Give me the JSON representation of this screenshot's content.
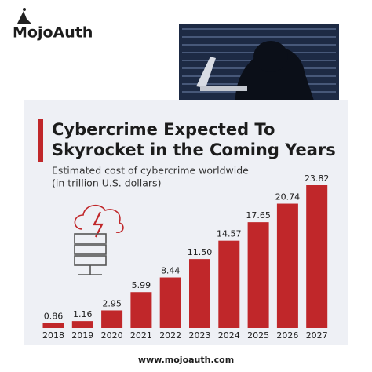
{
  "brand": "MojoAuth",
  "footer": "www.mojoauth.com",
  "chart_data": {
    "type": "bar",
    "title": [
      "Cybercrime Expected To",
      "Skyrocket in the Coming Years"
    ],
    "subtitle": [
      "Estimated cost of cybercrime worldwide",
      "(in trillion U.S. dollars)"
    ],
    "categories": [
      "2018",
      "2019",
      "2020",
      "2021",
      "2022",
      "2023",
      "2024",
      "2025",
      "2026",
      "2027"
    ],
    "values": [
      0.86,
      1.16,
      2.95,
      5.99,
      8.44,
      11.5,
      14.57,
      17.65,
      20.74,
      23.82
    ],
    "value_labels": [
      "0.86",
      "1.16",
      "2.95",
      "5.99",
      "8.44",
      "11.50",
      "14.57",
      "17.65",
      "20.74",
      "23.82"
    ],
    "color": "#c0272a"
  }
}
